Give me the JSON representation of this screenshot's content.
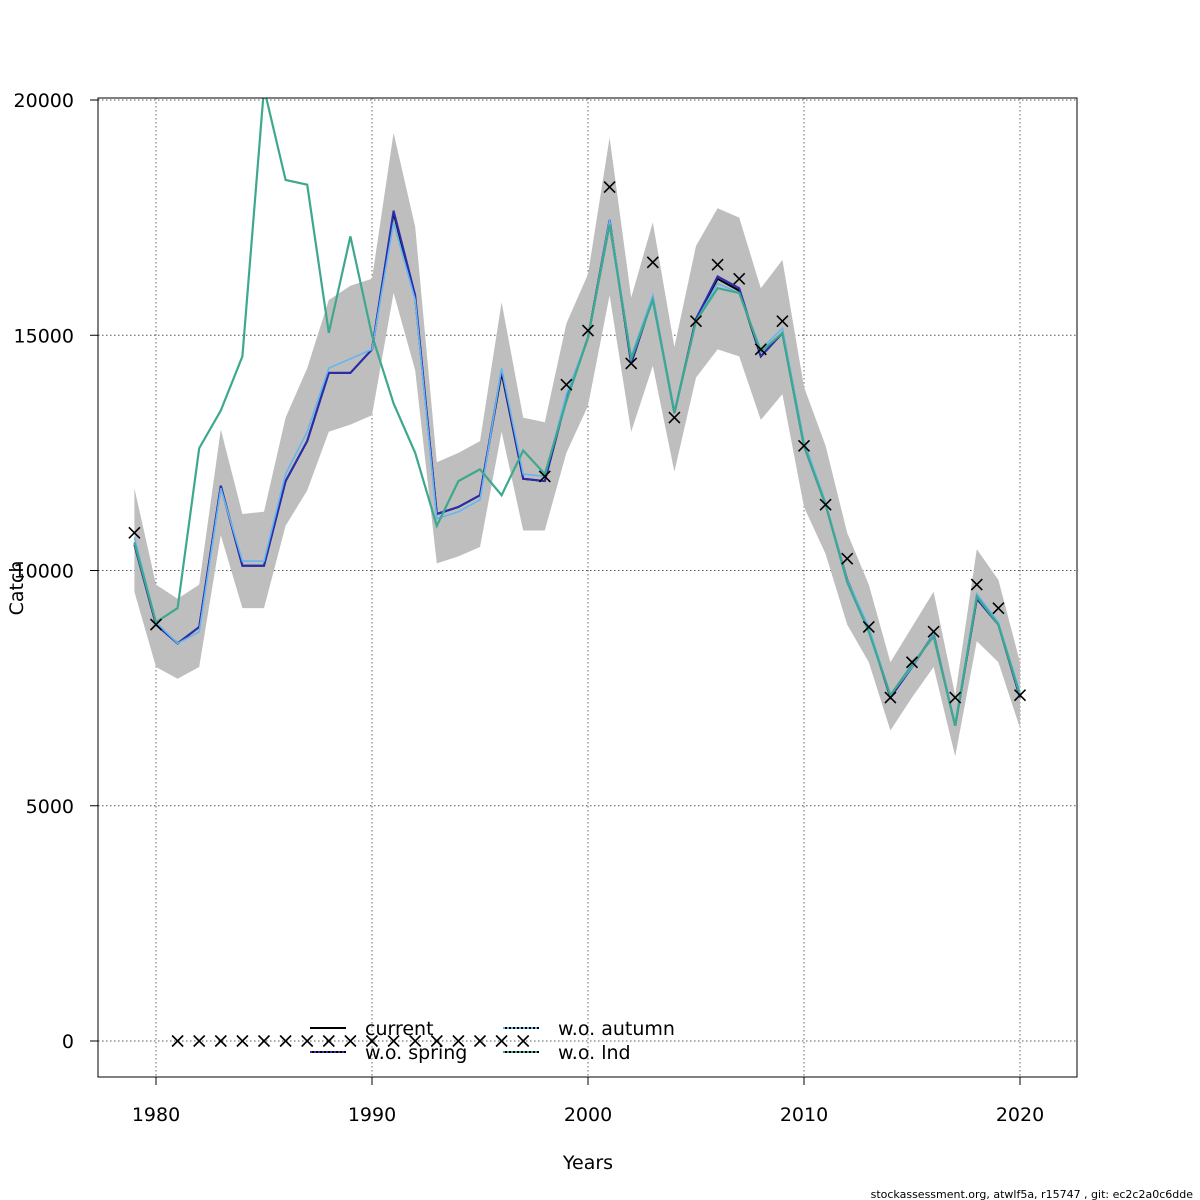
{
  "chart_data": {
    "type": "line",
    "xlabel": "Years",
    "ylabel": "Catch",
    "xlim": [
      1977.5,
      2022.5
    ],
    "ylim": [
      -800,
      20000
    ],
    "x_ticks": [
      1980,
      1990,
      2000,
      2010,
      2020
    ],
    "y_ticks": [
      0,
      5000,
      10000,
      15000,
      20000
    ],
    "grid": true,
    "legend_position": "bottom-center",
    "colors": {
      "band": "#bebebe",
      "current": "#000000",
      "wo_spring": "#2b2cb0",
      "wo_autumn": "#64b5f0",
      "wo_lnd": "#3ea88e",
      "observed": "#000000"
    },
    "years": [
      1979,
      1980,
      1981,
      1982,
      1983,
      1984,
      1985,
      1986,
      1987,
      1988,
      1989,
      1990,
      1991,
      1992,
      1993,
      1994,
      1995,
      1996,
      1997,
      1998,
      1999,
      2000,
      2001,
      2002,
      2003,
      2004,
      2005,
      2006,
      2007,
      2008,
      2009,
      2010,
      2011,
      2012,
      2013,
      2014,
      2015,
      2016,
      2017,
      2018,
      2019,
      2020
    ],
    "band_upper": [
      11750,
      9700,
      9400,
      9700,
      13000,
      11200,
      11250,
      13250,
      14300,
      15750,
      16050,
      16200,
      19300,
      17300,
      12300,
      12500,
      12750,
      15700,
      13250,
      13150,
      15250,
      16300,
      19200,
      15800,
      17400,
      14750,
      16900,
      17700,
      17500,
      16000,
      16600,
      13900,
      12650,
      10800,
      9700,
      8050,
      8800,
      9550,
      7350,
      10450,
      9800,
      8050
    ],
    "band_lower": [
      9550,
      7950,
      7700,
      7950,
      10750,
      9200,
      9200,
      10950,
      11700,
      12950,
      13100,
      13300,
      15900,
      14250,
      10150,
      10300,
      10500,
      12950,
      10850,
      10850,
      12500,
      13500,
      15850,
      12950,
      14350,
      12100,
      14100,
      14700,
      14550,
      13200,
      13750,
      11350,
      10350,
      8850,
      8050,
      6600,
      7300,
      7950,
      6050,
      8500,
      8050,
      6650
    ],
    "series": [
      {
        "name": "current",
        "values": [
          10550,
          8850,
          8450,
          8800,
          11800,
          10100,
          10100,
          11900,
          12750,
          14200,
          14200,
          14700,
          17600,
          15800,
          11200,
          11350,
          11600,
          14200,
          11950,
          11900,
          13650,
          14950,
          17450,
          14400,
          15800,
          13350,
          15350,
          16200,
          15950,
          14550,
          15050,
          12650,
          11400,
          9800,
          8750,
          7300,
          7950,
          8650,
          6700,
          9400,
          8850,
          7300
        ]
      },
      {
        "name": "w.o. spring",
        "values": [
          10550,
          8850,
          8450,
          8800,
          11800,
          10100,
          10100,
          11900,
          12750,
          14200,
          14200,
          14700,
          17650,
          15850,
          11200,
          11350,
          11600,
          14250,
          11950,
          11900,
          13650,
          14950,
          17450,
          14400,
          15800,
          13350,
          15350,
          16250,
          16000,
          14550,
          15050,
          12650,
          11400,
          9800,
          8750,
          7300,
          7950,
          8650,
          6700,
          9400,
          8850,
          7300
        ]
      },
      {
        "name": "w.o. autumn",
        "values": [
          10700,
          8900,
          8450,
          8700,
          11750,
          10200,
          10200,
          12050,
          12950,
          14300,
          14500,
          14700,
          17400,
          15750,
          11100,
          11250,
          11500,
          14300,
          12050,
          12000,
          13750,
          14950,
          17450,
          14550,
          15850,
          13400,
          15300,
          16100,
          15900,
          14700,
          15150,
          12750,
          11450,
          9800,
          8800,
          7350,
          7950,
          8650,
          6750,
          9500,
          8900,
          7400
        ]
      },
      {
        "name": "w.o. lnd",
        "values": [
          10600,
          8900,
          9200,
          12600,
          13400,
          14550,
          20250,
          18300,
          18200,
          15050,
          17100,
          15000,
          13550,
          12500,
          10950,
          11900,
          12150,
          11600,
          12550,
          12050,
          13600,
          14950,
          17350,
          14500,
          15750,
          13350,
          15300,
          16000,
          15900,
          14650,
          15050,
          12650,
          11400,
          9750,
          8700,
          7350,
          8000,
          8600,
          6700,
          9450,
          8850,
          7350
        ]
      }
    ],
    "observed": {
      "name": "observed catch",
      "years": [
        1979,
        1980,
        1981,
        1982,
        1983,
        1984,
        1985,
        1986,
        1987,
        1988,
        1989,
        1990,
        1991,
        1992,
        1993,
        1994,
        1995,
        1996,
        1997,
        1998,
        1999,
        2000,
        2001,
        2002,
        2003,
        2004,
        2005,
        2006,
        2007,
        2008,
        2009,
        2010,
        2011,
        2012,
        2013,
        2014,
        2015,
        2016,
        2017,
        2018,
        2019,
        2020
      ],
      "values": [
        10800,
        8850,
        0,
        0,
        0,
        0,
        0,
        0,
        0,
        0,
        0,
        0,
        0,
        0,
        0,
        0,
        0,
        0,
        0,
        12000,
        13950,
        15100,
        18150,
        14400,
        16550,
        13250,
        15300,
        16500,
        16200,
        14700,
        15300,
        12650,
        11400,
        10250,
        8800,
        7300,
        8050,
        8700,
        7300,
        9700,
        9200,
        7350
      ]
    },
    "legend": [
      {
        "label": "current",
        "series": "current"
      },
      {
        "label": "w.o. spring",
        "series": "w.o. spring"
      },
      {
        "label": "w.o. autumn",
        "series": "w.o. autumn"
      },
      {
        "label": "w.o. lnd",
        "series": "w.o. lnd"
      }
    ]
  },
  "footer": "stockassessment.org, atwlf5a, r15747 , git: ec2c2a0c6dde"
}
